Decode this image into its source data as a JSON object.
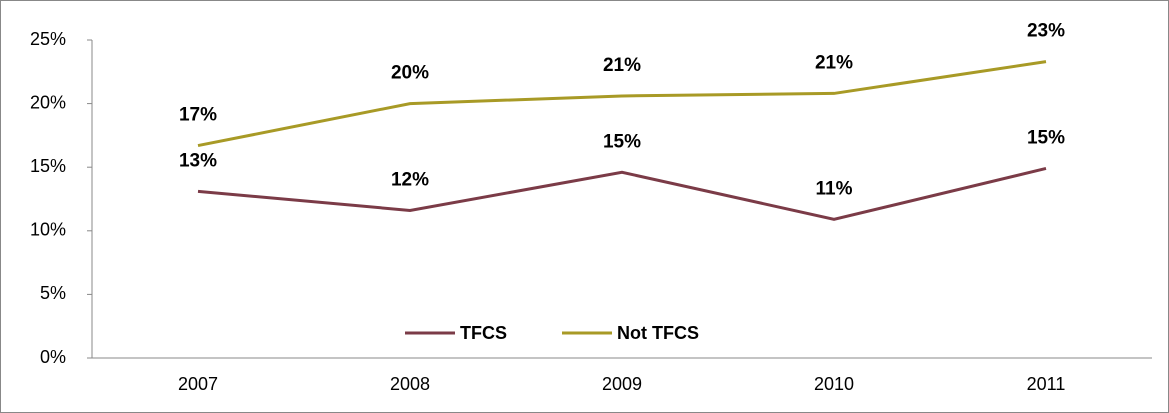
{
  "chart_data": {
    "type": "line",
    "categories": [
      "2007",
      "2008",
      "2009",
      "2010",
      "2011"
    ],
    "series": [
      {
        "name": "TFCS",
        "color": "#7b3b47",
        "values": [
          13.1,
          11.6,
          14.6,
          10.9,
          14.9
        ],
        "value_labels": [
          "13%",
          "12%",
          "15%",
          "11%",
          "15%"
        ]
      },
      {
        "name": "Not TFCS",
        "color": "#a89a26",
        "values": [
          16.7,
          20.0,
          20.6,
          20.8,
          23.3
        ],
        "value_labels": [
          "17%",
          "20%",
          "21%",
          "21%",
          "23%"
        ]
      }
    ],
    "ylim": [
      0,
      25
    ],
    "yticks": [
      {
        "value": 0,
        "label": "0%"
      },
      {
        "value": 5,
        "label": "5%"
      },
      {
        "value": 10,
        "label": "10%"
      },
      {
        "value": 15,
        "label": "15%"
      },
      {
        "value": 20,
        "label": "20%"
      },
      {
        "value": 25,
        "label": "25%"
      }
    ],
    "grid": false,
    "legend": "bottom"
  }
}
